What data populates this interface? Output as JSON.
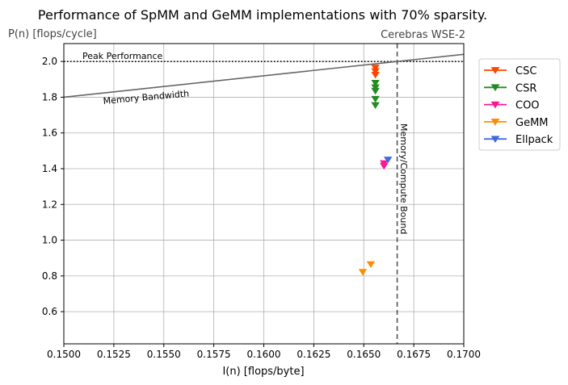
{
  "chart_data": {
    "type": "scatter",
    "title": "Performance of SpMM and GeMM implementations with 70% sparsity.",
    "xlabel": "I(n) [flops/byte]",
    "ylabel": "P(n) [flops/cycle]",
    "xlim": [
      0.15,
      0.17
    ],
    "ylim": [
      0.42,
      2.1
    ],
    "xticks": [
      "0.1500",
      "0.1525",
      "0.1550",
      "0.1575",
      "0.1600",
      "0.1625",
      "0.1650",
      "0.1675",
      "0.1700"
    ],
    "yticks": [
      "0.6",
      "0.8",
      "1.0",
      "1.2",
      "1.4",
      "1.6",
      "1.8",
      "2.0"
    ],
    "grid": true,
    "legend_position": "outside-right",
    "annotations": {
      "corner_label": "Cerebras WSE-2",
      "peak_label": "Peak Performance",
      "memory_label": "Memory Bandwidth",
      "bound_label": "Memory/Compute Bound"
    },
    "reference_lines": {
      "peak_performance": 2.0,
      "memory_bandwidth": {
        "x": [
          0.15,
          0.17
        ],
        "y": [
          1.8,
          2.04
        ]
      },
      "bound_x": 0.16667
    },
    "series": [
      {
        "name": "CSC",
        "color": "#ff4500",
        "x": [
          0.16558,
          0.16558,
          0.16558
        ],
        "y": [
          1.965,
          1.945,
          1.925
        ]
      },
      {
        "name": "CSR",
        "color": "#228b22",
        "x": [
          0.16558,
          0.16558,
          0.16558,
          0.16558,
          0.16558
        ],
        "y": [
          1.88,
          1.855,
          1.835,
          1.79,
          1.755
        ]
      },
      {
        "name": "COO",
        "color": "#ff1493",
        "x": [
          0.16601,
          0.16601
        ],
        "y": [
          1.43,
          1.415
        ]
      },
      {
        "name": "GeMM",
        "color": "#ff8c00",
        "x": [
          0.16495,
          0.16535
        ],
        "y": [
          0.822,
          0.865
        ]
      },
      {
        "name": "Ellpack",
        "color": "#4169e1",
        "x": [
          0.16621
        ],
        "y": [
          1.45
        ]
      }
    ]
  }
}
